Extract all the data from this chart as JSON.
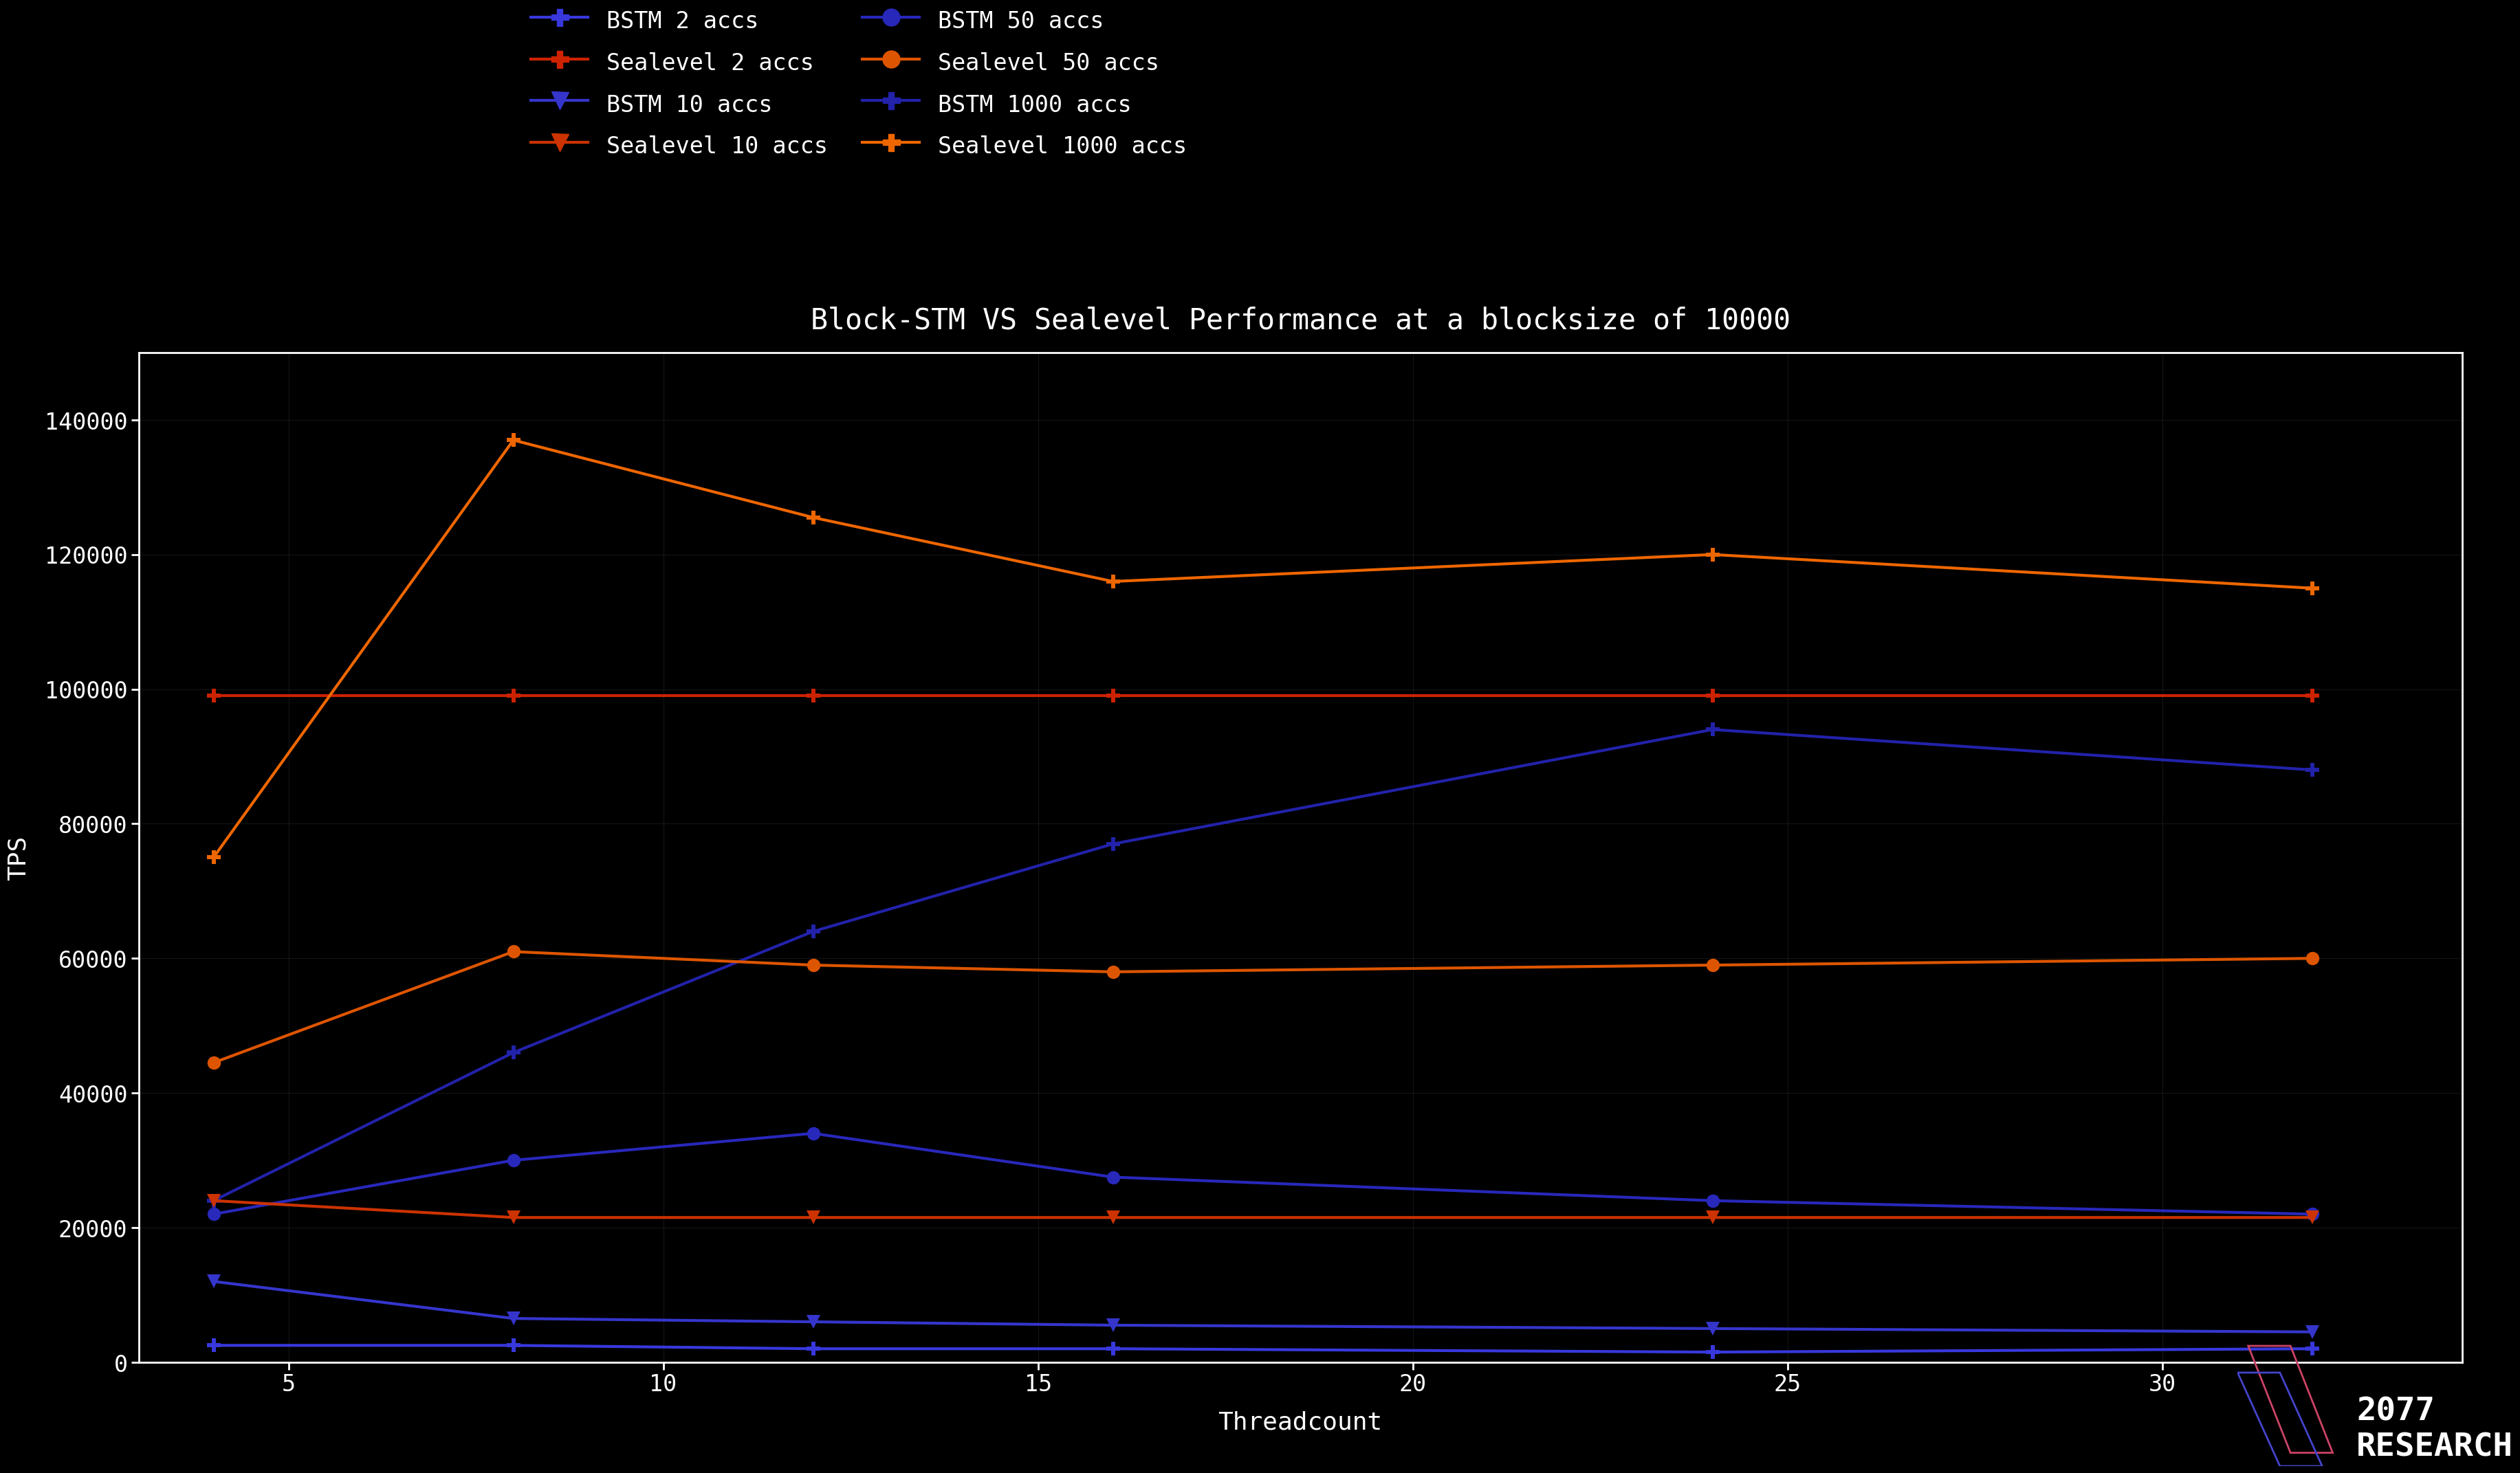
{
  "title": "Block-STM VS Sealevel Performance at a blocksize of 10000",
  "xlabel": "Threadcount",
  "ylabel": "TPS",
  "background_color": "#000000",
  "plot_bg_color": "#000000",
  "text_color": "#ffffff",
  "x_values": [
    4,
    8,
    12,
    16,
    24,
    32
  ],
  "series_order": [
    "bstm_2",
    "bstm_10",
    "bstm_50",
    "bstm_1000",
    "sealevel_2",
    "sealevel_10",
    "sealevel_50",
    "sealevel_1000"
  ],
  "series_data": {
    "bstm_2": [
      2500,
      2500,
      2000,
      2000,
      1500,
      2000
    ],
    "bstm_10": [
      12000,
      6500,
      6000,
      5500,
      5000,
      4500
    ],
    "bstm_50": [
      22000,
      30000,
      34000,
      27500,
      24000,
      22000
    ],
    "bstm_1000": [
      24000,
      46000,
      64000,
      77000,
      94000,
      88000
    ],
    "sealevel_2": [
      99000,
      99000,
      99000,
      99000,
      99000,
      99000
    ],
    "sealevel_10": [
      24000,
      21500,
      21500,
      21500,
      21500,
      21500
    ],
    "sealevel_50": [
      44500,
      61000,
      59000,
      58000,
      59000,
      60000
    ],
    "sealevel_1000": [
      75000,
      137000,
      125500,
      116000,
      120000,
      115000
    ]
  },
  "series_colors": {
    "bstm_2": "#3838dd",
    "bstm_10": "#3535cc",
    "bstm_50": "#2828bb",
    "bstm_1000": "#2222aa",
    "sealevel_2": "#cc2200",
    "sealevel_10": "#cc3300",
    "sealevel_50": "#dd5500",
    "sealevel_1000": "#ee6600"
  },
  "series_labels": {
    "bstm_2": "BSTM 2 accs",
    "bstm_10": "BSTM 10 accs",
    "bstm_50": "BSTM 50 accs",
    "bstm_1000": "BSTM 1000 accs",
    "sealevel_2": "Sealevel 2 accs",
    "sealevel_10": "Sealevel 10 accs",
    "sealevel_50": "Sealevel 50 accs",
    "sealevel_1000": "Sealevel 1000 accs"
  },
  "series_markers": {
    "bstm_2": "P",
    "bstm_10": "v",
    "bstm_50": "o",
    "bstm_1000": "P",
    "sealevel_2": "P",
    "sealevel_10": "v",
    "sealevel_50": "o",
    "sealevel_1000": "P"
  },
  "ylim": [
    0,
    150000
  ],
  "yticks": [
    0,
    20000,
    40000,
    60000,
    80000,
    100000,
    120000,
    140000
  ],
  "xticks": [
    5,
    10,
    15,
    20,
    25,
    30
  ],
  "title_fontsize": 30,
  "label_fontsize": 26,
  "tick_fontsize": 24,
  "legend_fontsize": 24,
  "line_width": 3.0,
  "marker_size": 14
}
